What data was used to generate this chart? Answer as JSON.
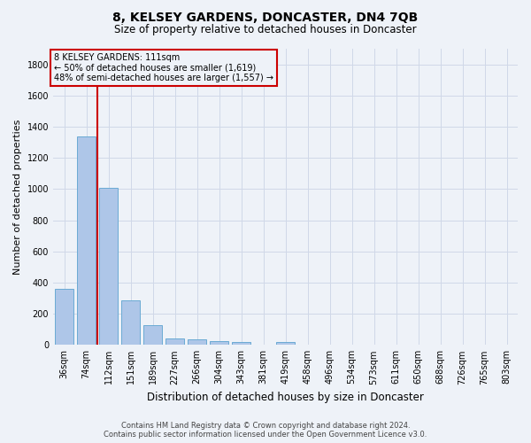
{
  "title": "8, KELSEY GARDENS, DONCASTER, DN4 7QB",
  "subtitle": "Size of property relative to detached houses in Doncaster",
  "xlabel": "Distribution of detached houses by size in Doncaster",
  "ylabel": "Number of detached properties",
  "footer_line1": "Contains HM Land Registry data © Crown copyright and database right 2024.",
  "footer_line2": "Contains public sector information licensed under the Open Government Licence v3.0.",
  "bin_labels": [
    "36sqm",
    "74sqm",
    "112sqm",
    "151sqm",
    "189sqm",
    "227sqm",
    "266sqm",
    "304sqm",
    "343sqm",
    "381sqm",
    "419sqm",
    "458sqm",
    "496sqm",
    "534sqm",
    "573sqm",
    "611sqm",
    "650sqm",
    "688sqm",
    "726sqm",
    "765sqm",
    "803sqm"
  ],
  "bar_values": [
    360,
    1340,
    1010,
    285,
    125,
    42,
    35,
    22,
    17,
    0,
    17,
    0,
    0,
    0,
    0,
    0,
    0,
    0,
    0,
    0,
    0
  ],
  "bar_color": "#aec6e8",
  "bar_edge_color": "#6aaad4",
  "grid_color": "#d0d8e8",
  "ylim_max": 1900,
  "yticks": [
    0,
    200,
    400,
    600,
    800,
    1000,
    1200,
    1400,
    1600,
    1800
  ],
  "red_line_x": 1.5,
  "annotation_text_line1": "8 KELSEY GARDENS: 111sqm",
  "annotation_text_line2": "← 50% of detached houses are smaller (1,619)",
  "annotation_text_line3": "48% of semi-detached houses are larger (1,557) →",
  "annotation_box_edgecolor": "#cc0000",
  "background_color": "#eef2f8",
  "title_fontsize": 10,
  "subtitle_fontsize": 8.5,
  "ylabel_fontsize": 8,
  "xlabel_fontsize": 8.5,
  "tick_fontsize": 7,
  "annotation_fontsize": 7,
  "footer_fontsize": 6
}
